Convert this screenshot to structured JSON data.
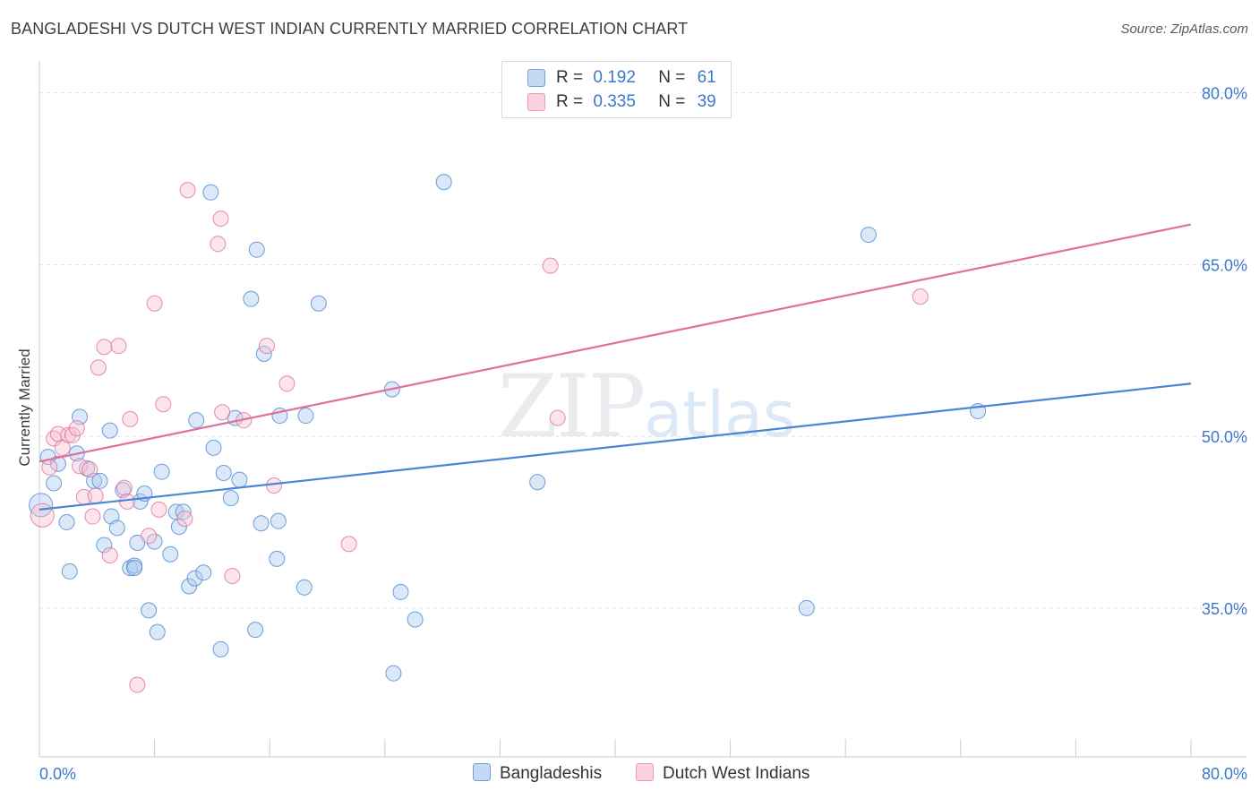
{
  "chart_data": {
    "type": "scatter",
    "title": "BANGLADESHI VS DUTCH WEST INDIAN CURRENTLY MARRIED CORRELATION CHART",
    "source": "Source: ZipAtlas.com",
    "xlabel": "",
    "ylabel": "Currently Married",
    "xlim": [
      0,
      80
    ],
    "ylim": [
      22,
      82
    ],
    "x_tick_labels": [
      "0.0%",
      "80.0%"
    ],
    "y_ticks": [
      35,
      50,
      65,
      80
    ],
    "y_tick_labels": [
      "35.0%",
      "50.0%",
      "65.0%",
      "80.0%"
    ],
    "grid": true,
    "legend_position": "top-center",
    "stats": [
      {
        "r_label": "R =",
        "r": "0.192",
        "n_label": "N =",
        "n": "61"
      },
      {
        "r_label": "R =",
        "r": "0.335",
        "n_label": "N =",
        "n": "39"
      }
    ],
    "series": [
      {
        "name": "Bangladeshis",
        "color": "#4a86d4",
        "fill": "#aecbee",
        "trend": {
          "x0": 0,
          "y0": 43.6,
          "x1": 80,
          "y1": 54.6
        },
        "points": [
          [
            0.1,
            44.0
          ],
          [
            0.6,
            48.2
          ],
          [
            1.0,
            45.9
          ],
          [
            1.3,
            47.6
          ],
          [
            1.9,
            42.5
          ],
          [
            2.1,
            38.2
          ],
          [
            2.8,
            51.7
          ],
          [
            2.6,
            48.5
          ],
          [
            3.3,
            47.2
          ],
          [
            3.8,
            46.1
          ],
          [
            4.2,
            46.1
          ],
          [
            4.5,
            40.5
          ],
          [
            4.9,
            50.5
          ],
          [
            5.0,
            43.0
          ],
          [
            5.4,
            42.0
          ],
          [
            5.8,
            45.3
          ],
          [
            6.3,
            38.5
          ],
          [
            6.6,
            38.7
          ],
          [
            6.8,
            40.7
          ],
          [
            7.0,
            44.3
          ],
          [
            7.3,
            45.0
          ],
          [
            7.6,
            34.8
          ],
          [
            8.0,
            40.8
          ],
          [
            8.2,
            32.9
          ],
          [
            8.5,
            46.9
          ],
          [
            9.1,
            39.7
          ],
          [
            9.5,
            43.4
          ],
          [
            9.7,
            42.1
          ],
          [
            10.0,
            43.4
          ],
          [
            10.4,
            36.9
          ],
          [
            10.8,
            37.6
          ],
          [
            10.9,
            51.4
          ],
          [
            11.4,
            38.1
          ],
          [
            11.9,
            71.3
          ],
          [
            12.1,
            49.0
          ],
          [
            12.6,
            31.4
          ],
          [
            12.8,
            46.8
          ],
          [
            13.3,
            44.6
          ],
          [
            13.6,
            51.6
          ],
          [
            13.9,
            46.2
          ],
          [
            14.7,
            62.0
          ],
          [
            15.1,
            66.3
          ],
          [
            15.0,
            33.1
          ],
          [
            15.4,
            42.4
          ],
          [
            15.6,
            57.2
          ],
          [
            16.5,
            39.3
          ],
          [
            16.6,
            42.6
          ],
          [
            16.7,
            51.8
          ],
          [
            18.4,
            36.8
          ],
          [
            18.5,
            51.8
          ],
          [
            19.4,
            61.6
          ],
          [
            24.5,
            54.1
          ],
          [
            25.1,
            36.4
          ],
          [
            24.6,
            29.3
          ],
          [
            26.1,
            34.0
          ],
          [
            28.1,
            72.2
          ],
          [
            34.6,
            46.0
          ],
          [
            53.3,
            35.0
          ],
          [
            57.6,
            67.6
          ],
          [
            65.2,
            52.2
          ],
          [
            6.6,
            38.5
          ]
        ]
      },
      {
        "name": "Dutch West Indians",
        "color": "#e0709a",
        "fill": "#f6c3d3",
        "trend": {
          "x0": 0,
          "y0": 47.8,
          "x1": 80,
          "y1": 68.5
        },
        "points": [
          [
            0.2,
            43.1
          ],
          [
            0.7,
            47.3
          ],
          [
            1.0,
            49.8
          ],
          [
            1.3,
            50.2
          ],
          [
            1.6,
            49.0
          ],
          [
            2.0,
            50.1
          ],
          [
            2.3,
            50.1
          ],
          [
            2.6,
            50.7
          ],
          [
            2.8,
            47.4
          ],
          [
            3.1,
            44.7
          ],
          [
            3.5,
            47.1
          ],
          [
            3.7,
            43.0
          ],
          [
            3.9,
            44.8
          ],
          [
            4.1,
            56.0
          ],
          [
            4.5,
            57.8
          ],
          [
            4.9,
            39.6
          ],
          [
            5.5,
            57.9
          ],
          [
            5.9,
            45.5
          ],
          [
            6.1,
            44.3
          ],
          [
            6.3,
            51.5
          ],
          [
            6.8,
            28.3
          ],
          [
            7.6,
            41.3
          ],
          [
            8.0,
            61.6
          ],
          [
            8.3,
            43.6
          ],
          [
            8.6,
            52.8
          ],
          [
            10.1,
            42.8
          ],
          [
            10.3,
            71.5
          ],
          [
            12.4,
            66.8
          ],
          [
            12.6,
            69.0
          ],
          [
            12.7,
            52.1
          ],
          [
            13.4,
            37.8
          ],
          [
            14.2,
            51.4
          ],
          [
            15.8,
            57.9
          ],
          [
            16.3,
            45.7
          ],
          [
            17.2,
            54.6
          ],
          [
            21.5,
            40.6
          ],
          [
            35.5,
            64.9
          ],
          [
            36.0,
            51.6
          ],
          [
            61.2,
            62.2
          ]
        ]
      }
    ]
  },
  "watermark": {
    "zip": "ZIP",
    "atlas": "atlas"
  }
}
